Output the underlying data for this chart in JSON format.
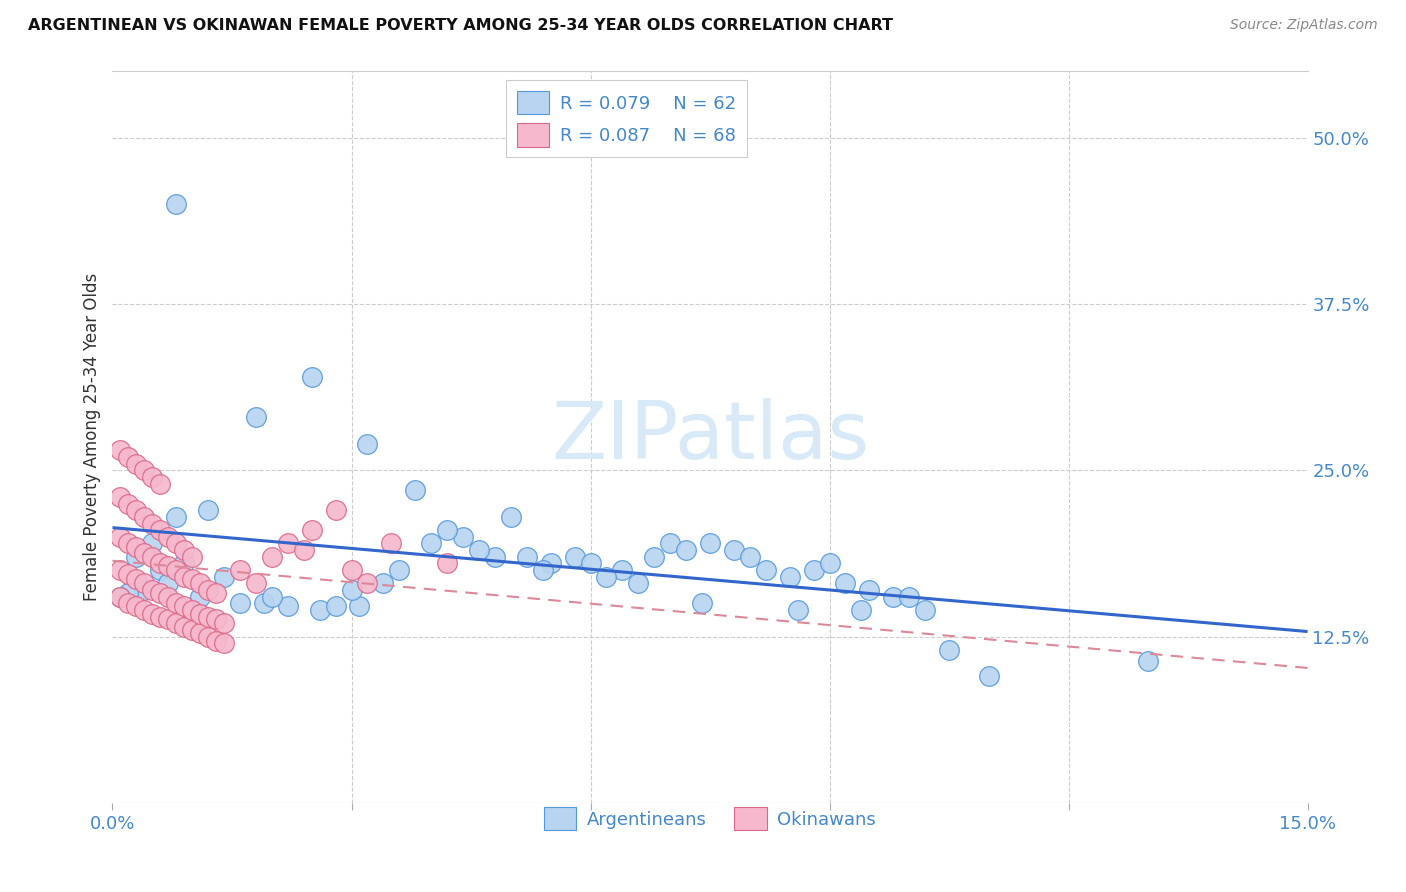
{
  "title": "ARGENTINEAN VS OKINAWAN FEMALE POVERTY AMONG 25-34 YEAR OLDS CORRELATION CHART",
  "source": "Source: ZipAtlas.com",
  "ylabel": "Female Poverty Among 25-34 Year Olds",
  "xlim": [
    0.0,
    0.15
  ],
  "ylim": [
    0.0,
    0.55
  ],
  "legend_r1": "R = 0.079",
  "legend_n1": "N = 62",
  "legend_r2": "R = 0.087",
  "legend_n2": "N = 68",
  "blue_fill": "#b8d4f0",
  "blue_edge": "#5599dd",
  "pink_fill": "#f5b8cc",
  "pink_edge": "#dd6688",
  "line_blue": "#3366cc",
  "line_pink": "#dd8899",
  "watermark_color": "#d8eaf8",
  "argentinean_x": [
    0.025,
    0.018,
    0.032,
    0.038,
    0.008,
    0.012,
    0.005,
    0.003,
    0.006,
    0.009,
    0.014,
    0.007,
    0.004,
    0.002,
    0.001,
    0.011,
    0.016,
    0.019,
    0.022,
    0.026,
    0.028,
    0.031,
    0.034,
    0.036,
    0.04,
    0.044,
    0.048,
    0.052,
    0.055,
    0.058,
    0.06,
    0.064,
    0.068,
    0.07,
    0.072,
    0.075,
    0.078,
    0.08,
    0.082,
    0.085,
    0.088,
    0.09,
    0.092,
    0.095,
    0.098,
    0.1,
    0.105,
    0.11,
    0.05,
    0.042,
    0.046,
    0.054,
    0.062,
    0.066,
    0.074,
    0.086,
    0.094,
    0.102,
    0.13,
    0.008,
    0.02,
    0.03
  ],
  "argentinean_y": [
    0.32,
    0.29,
    0.27,
    0.235,
    0.215,
    0.22,
    0.195,
    0.185,
    0.175,
    0.18,
    0.17,
    0.165,
    0.16,
    0.158,
    0.155,
    0.155,
    0.15,
    0.15,
    0.148,
    0.145,
    0.148,
    0.148,
    0.165,
    0.175,
    0.195,
    0.2,
    0.185,
    0.185,
    0.18,
    0.185,
    0.18,
    0.175,
    0.185,
    0.195,
    0.19,
    0.195,
    0.19,
    0.185,
    0.175,
    0.17,
    0.175,
    0.18,
    0.165,
    0.16,
    0.155,
    0.155,
    0.115,
    0.095,
    0.215,
    0.205,
    0.19,
    0.175,
    0.17,
    0.165,
    0.15,
    0.145,
    0.145,
    0.145,
    0.107,
    0.45,
    0.155,
    0.16
  ],
  "okinawan_x": [
    0.001,
    0.002,
    0.003,
    0.004,
    0.005,
    0.006,
    0.007,
    0.008,
    0.009,
    0.01,
    0.011,
    0.012,
    0.013,
    0.014,
    0.001,
    0.002,
    0.003,
    0.004,
    0.005,
    0.006,
    0.007,
    0.008,
    0.009,
    0.01,
    0.011,
    0.012,
    0.013,
    0.014,
    0.001,
    0.002,
    0.003,
    0.004,
    0.005,
    0.006,
    0.007,
    0.008,
    0.009,
    0.01,
    0.011,
    0.012,
    0.013,
    0.001,
    0.002,
    0.003,
    0.004,
    0.005,
    0.006,
    0.007,
    0.008,
    0.009,
    0.01,
    0.001,
    0.002,
    0.003,
    0.004,
    0.005,
    0.006,
    0.022,
    0.025,
    0.028,
    0.035,
    0.042,
    0.018,
    0.016,
    0.02,
    0.024,
    0.03,
    0.032
  ],
  "okinawan_y": [
    0.155,
    0.15,
    0.148,
    0.145,
    0.142,
    0.14,
    0.138,
    0.135,
    0.132,
    0.13,
    0.128,
    0.125,
    0.122,
    0.12,
    0.175,
    0.172,
    0.168,
    0.165,
    0.16,
    0.158,
    0.155,
    0.15,
    0.148,
    0.145,
    0.142,
    0.14,
    0.138,
    0.135,
    0.2,
    0.195,
    0.192,
    0.188,
    0.185,
    0.18,
    0.178,
    0.175,
    0.17,
    0.168,
    0.165,
    0.16,
    0.158,
    0.23,
    0.225,
    0.22,
    0.215,
    0.21,
    0.205,
    0.2,
    0.195,
    0.19,
    0.185,
    0.265,
    0.26,
    0.255,
    0.25,
    0.245,
    0.24,
    0.195,
    0.205,
    0.22,
    0.195,
    0.18,
    0.165,
    0.175,
    0.185,
    0.19,
    0.175,
    0.165
  ]
}
